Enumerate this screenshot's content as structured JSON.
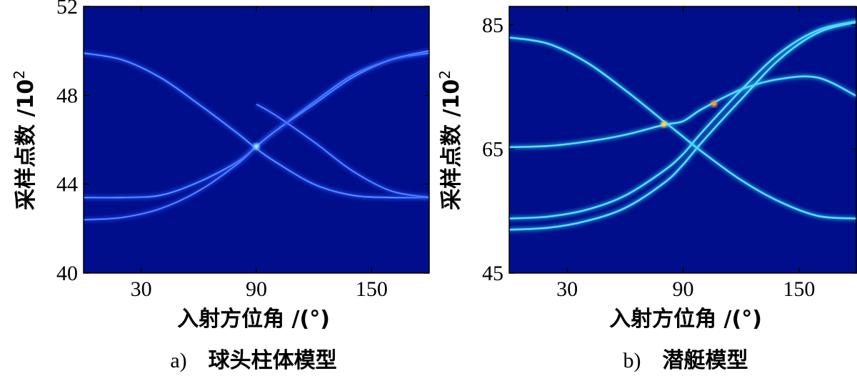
{
  "chart_data": [
    {
      "type": "heatmap",
      "id": "a",
      "caption_id": "a)",
      "caption_text": "球头柱体模型",
      "xlabel": "入射方位角 /(°)",
      "ylabel_text": "采样点数 /10",
      "ylabel_exp": "2",
      "xlim": [
        0,
        180
      ],
      "ylim": [
        40,
        52
      ],
      "xticks": [
        30,
        90,
        150
      ],
      "yticks": [
        40,
        44,
        48,
        52
      ],
      "background": "#000e8c",
      "series": [
        {
          "name": "trace-1",
          "color": "#2d62ff",
          "x": [
            0,
            20,
            40,
            60,
            80,
            90,
            100,
            120,
            140,
            160,
            180
          ],
          "y": [
            49.9,
            49.6,
            48.8,
            47.6,
            46.3,
            45.6,
            45.0,
            44.0,
            43.5,
            43.4,
            43.4
          ]
        },
        {
          "name": "trace-2",
          "color": "#2d62ff",
          "x": [
            0,
            20,
            40,
            60,
            80,
            90,
            100,
            120,
            140,
            160,
            180
          ],
          "y": [
            43.4,
            43.4,
            43.5,
            44.1,
            45.0,
            45.7,
            46.4,
            47.7,
            48.9,
            49.6,
            49.9
          ]
        },
        {
          "name": "trace-3",
          "color": "#2a55f5",
          "x": [
            0,
            20,
            40,
            60,
            80,
            90,
            100,
            120,
            140,
            160,
            180
          ],
          "y": [
            42.4,
            42.5,
            42.9,
            43.7,
            44.9,
            45.7,
            46.4,
            47.6,
            48.8,
            49.6,
            50.0
          ]
        },
        {
          "name": "trace-4",
          "color": "#2a55f5",
          "x": [
            90,
            100,
            120,
            140,
            160,
            180
          ],
          "y": [
            47.6,
            47.1,
            45.9,
            44.6,
            43.7,
            43.4
          ]
        }
      ],
      "hotspots": [
        {
          "x": 90,
          "y": 45.7,
          "color": "#8fe8ff"
        }
      ]
    },
    {
      "type": "heatmap",
      "id": "b",
      "caption_id": "b)",
      "caption_text": "潜艇模型",
      "xlabel": "入射方位角 /(°)",
      "ylabel_text": "采样点数 /10",
      "ylabel_exp": "2",
      "xlim": [
        0,
        180
      ],
      "ylim": [
        45,
        88
      ],
      "xticks": [
        30,
        90,
        150
      ],
      "yticks": [
        45,
        65,
        85
      ],
      "background": "#000e8c",
      "series": [
        {
          "name": "trace-1",
          "color": "#39d7ff",
          "x": [
            0,
            20,
            40,
            60,
            80,
            90,
            100,
            120,
            140,
            160,
            180
          ],
          "y": [
            83.0,
            82.0,
            79.0,
            74.5,
            69.5,
            67.0,
            64.5,
            60.0,
            56.5,
            54.2,
            53.8
          ]
        },
        {
          "name": "trace-2",
          "color": "#39d7ff",
          "x": [
            0,
            20,
            40,
            60,
            80,
            90,
            100,
            120,
            140,
            160,
            180
          ],
          "y": [
            65.3,
            65.5,
            66.2,
            67.3,
            68.9,
            69.5,
            71.5,
            74.6,
            76.3,
            76.5,
            73.5
          ]
        },
        {
          "name": "trace-3",
          "color": "#39d7ff",
          "x": [
            0,
            20,
            40,
            60,
            80,
            90,
            100,
            120,
            140,
            160,
            180
          ],
          "y": [
            53.8,
            54.1,
            55.2,
            57.5,
            61.5,
            64.2,
            67.8,
            74.5,
            80.5,
            84.2,
            85.6
          ]
        },
        {
          "name": "trace-4",
          "color": "#39d7ff",
          "x": [
            0,
            20,
            40,
            60,
            80,
            90,
            100,
            120,
            140,
            160,
            180
          ],
          "y": [
            52.0,
            52.3,
            53.4,
            55.5,
            59.5,
            62.5,
            66.2,
            73.0,
            79.5,
            83.8,
            85.5
          ]
        }
      ],
      "hotspots": [
        {
          "x": 80,
          "y": 69.0,
          "color": "#ffd64a"
        },
        {
          "x": 106,
          "y": 72.3,
          "color": "#ff9a3a"
        }
      ]
    }
  ]
}
